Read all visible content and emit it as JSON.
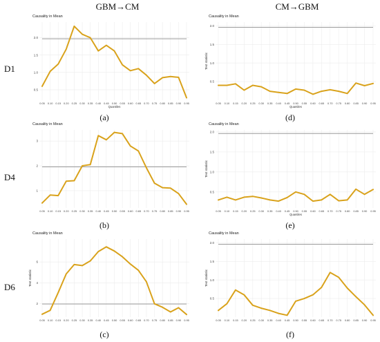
{
  "column_headers": [
    "GBM→CM",
    "CM→GBM"
  ],
  "row_labels": [
    "D1",
    "D4",
    "D6"
  ],
  "colors": {
    "series": "#D9A21B",
    "threshold": "#9a9a9a",
    "grid": "#ececec"
  },
  "chart_data": [
    {
      "id": "a",
      "caption": "(a)",
      "type": "line",
      "title": "Causality in Mean",
      "ylabel": "",
      "xlabel": "Quantiles",
      "ylim": [
        0.2,
        2.45
      ],
      "yticks": [
        0.5,
        1.0,
        1.5,
        2.0
      ],
      "ytick_labels": [
        "0.5",
        "1.0",
        "1.5",
        "2.0"
      ],
      "x": [
        "0.05",
        "0.10",
        "0.15",
        "0.20",
        "0.25",
        "0.30",
        "0.35",
        "0.40",
        "0.45",
        "0.50",
        "0.55",
        "0.60",
        "0.65",
        "0.70",
        "0.75",
        "0.80",
        "0.85",
        "0.90",
        "0.95"
      ],
      "values": [
        0.6,
        1.03,
        1.24,
        1.67,
        2.33,
        2.1,
        2.0,
        1.62,
        1.78,
        1.62,
        1.22,
        1.05,
        1.11,
        0.92,
        0.68,
        0.85,
        0.88,
        0.86,
        0.27
      ],
      "threshold": 1.97,
      "grid": true
    },
    {
      "id": "d",
      "caption": "(d)",
      "type": "line",
      "title": "Causality in Mean",
      "ylabel": "Test statistic",
      "xlabel": "Quantiles",
      "ylim": [
        0.0,
        2.1
      ],
      "yticks": [
        0.5,
        1.0,
        1.5,
        2.0
      ],
      "ytick_labels": [
        "0.5",
        "1.0",
        "1.5",
        "2.0"
      ],
      "x": [
        "0.05",
        "0.10",
        "0.15",
        "0.20",
        "0.25",
        "0.30",
        "0.35",
        "0.40",
        "0.45",
        "0.50",
        "0.55",
        "0.60",
        "0.65",
        "0.70",
        "0.75",
        "0.80",
        "0.85",
        "0.90",
        "0.95"
      ],
      "values": [
        0.4,
        0.4,
        0.44,
        0.27,
        0.4,
        0.36,
        0.24,
        0.21,
        0.18,
        0.3,
        0.27,
        0.16,
        0.24,
        0.28,
        0.24,
        0.18,
        0.46,
        0.39,
        0.45
      ],
      "threshold": 1.96,
      "grid": true
    },
    {
      "id": "b",
      "caption": "(b)",
      "type": "line",
      "title": "Causality in Mean",
      "ylabel": "",
      "xlabel": "",
      "ylim": [
        0.3,
        3.45
      ],
      "yticks": [
        1,
        2,
        3
      ],
      "ytick_labels": [
        "1",
        "2",
        "3"
      ],
      "x": [
        "0.05",
        "0.10",
        "0.15",
        "0.20",
        "0.25",
        "0.30",
        "0.35",
        "0.40",
        "0.45",
        "0.50",
        "0.55",
        "0.60",
        "0.65",
        "0.70",
        "0.75",
        "0.80",
        "0.85",
        "0.90",
        "0.95"
      ],
      "values": [
        0.5,
        0.82,
        0.8,
        1.38,
        1.4,
        2.0,
        2.05,
        3.22,
        3.05,
        3.35,
        3.3,
        2.8,
        2.6,
        1.92,
        1.3,
        1.12,
        1.1,
        0.88,
        0.45
      ],
      "threshold": 1.96,
      "grid": true
    },
    {
      "id": "e",
      "caption": "(e)",
      "type": "line",
      "title": "Causality in Mean",
      "ylabel": "Test statistic",
      "xlabel": "Quantiles",
      "ylim": [
        0.1,
        2.05
      ],
      "yticks": [
        0.5,
        1.0,
        1.5,
        2.0
      ],
      "ytick_labels": [
        "0.5",
        "1.0",
        "1.5",
        "2.0"
      ],
      "x": [
        "0.05",
        "0.10",
        "0.15",
        "0.20",
        "0.25",
        "0.30",
        "0.35",
        "0.40",
        "0.45",
        "0.50",
        "0.55",
        "0.60",
        "0.65",
        "0.70",
        "0.75",
        "0.80",
        "0.85",
        "0.90",
        "0.95"
      ],
      "values": [
        0.3,
        0.37,
        0.3,
        0.37,
        0.39,
        0.35,
        0.3,
        0.27,
        0.36,
        0.5,
        0.44,
        0.27,
        0.3,
        0.44,
        0.28,
        0.3,
        0.57,
        0.44,
        0.56
      ],
      "threshold": 1.96,
      "grid": true
    },
    {
      "id": "c",
      "caption": "(c)",
      "type": "line",
      "title": "Causality in Mean",
      "ylabel": "Test statistic",
      "xlabel": "",
      "ylim": [
        0.7,
        8.2
      ],
      "yticks": [
        2,
        4,
        6
      ],
      "ytick_labels": [
        "2",
        "4",
        "6"
      ],
      "x": [
        "0.05",
        "0.10",
        "0.15",
        "0.20",
        "0.25",
        "0.30",
        "0.35",
        "0.40",
        "0.45",
        "0.50",
        "0.55",
        "0.60",
        "0.65",
        "0.70",
        "0.75",
        "0.80",
        "0.85",
        "0.90",
        "0.95"
      ],
      "values": [
        0.98,
        1.35,
        3.05,
        4.85,
        5.75,
        5.65,
        6.1,
        7.0,
        7.45,
        7.05,
        6.5,
        5.8,
        5.2,
        4.1,
        1.98,
        1.65,
        1.2,
        1.6,
        0.95
      ],
      "threshold": 1.96,
      "grid": true
    },
    {
      "id": "f",
      "caption": "(f)",
      "type": "line",
      "title": "Causality in Mean",
      "ylabel": "Test statistic",
      "xlabel": "",
      "ylim": [
        0.0,
        2.1
      ],
      "yticks": [
        0.5,
        1.0,
        1.5,
        2.0
      ],
      "ytick_labels": [
        "0.5",
        "1.0",
        "1.5",
        "2.0"
      ],
      "x": [
        "0.05",
        "0.10",
        "0.15",
        "0.20",
        "0.25",
        "0.30",
        "0.35",
        "0.40",
        "0.45",
        "0.50",
        "0.55",
        "0.60",
        "0.65",
        "0.70",
        "0.75",
        "0.80",
        "0.85",
        "0.90",
        "0.95"
      ],
      "values": [
        0.18,
        0.36,
        0.73,
        0.6,
        0.32,
        0.24,
        0.18,
        0.1,
        0.05,
        0.43,
        0.5,
        0.6,
        0.8,
        1.2,
        1.07,
        0.78,
        0.55,
        0.33,
        0.05
      ],
      "threshold": 1.96,
      "grid": true
    }
  ]
}
